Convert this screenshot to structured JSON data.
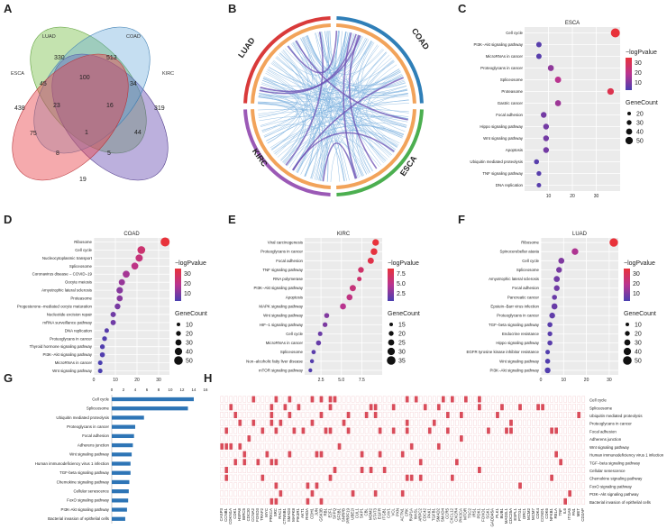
{
  "panels": {
    "A": "A",
    "B": "B",
    "C": "C",
    "D": "D",
    "E": "E",
    "F": "F",
    "G": "G",
    "H": "H"
  },
  "venn": {
    "sets": [
      "LUAD",
      "COAD",
      "ESCA",
      "KIRC"
    ],
    "colors": [
      "#5aa0d8",
      "#7cc24e",
      "#e8434a",
      "#6b4fb3"
    ],
    "regions": [
      "330",
      "513",
      "438",
      "319",
      "45",
      "100",
      "34",
      "75",
      "23",
      "16",
      "44",
      "1",
      "5",
      "8",
      "19"
    ]
  },
  "circos": {
    "labels": [
      "LUAD",
      "COAD",
      "ESCA",
      "KIRC"
    ],
    "colors": [
      "#9b59b6",
      "#d93a3a",
      "#2f7fb8",
      "#4caf50"
    ],
    "link_color": "#7fb3e0"
  },
  "legend": {
    "color_title": "−logPvalue",
    "size_title": "GeneCount"
  },
  "chart_data": [
    {
      "panel": "C",
      "type": "scatter",
      "title": "ESCA",
      "categories": [
        "Cell cycle",
        "PI3K−Akt signaling pathway",
        "MicroRNAs in cancer",
        "Proteoglycans in cancer",
        "Spliceosome",
        "Proteasome",
        "Gastric cancer",
        "Focal adhesion",
        "Hippo signaling pathway",
        "Wnt signaling pathway",
        "Apoptosis",
        "Ubiquitin mediated proteolysis",
        "TNF signaling pathway",
        "DNA replication"
      ],
      "x": [
        38,
        6,
        6,
        11,
        14,
        36,
        14,
        8,
        9,
        9,
        9,
        5,
        6,
        6
      ],
      "logp": [
        38,
        8,
        8,
        16,
        22,
        34,
        18,
        12,
        12,
        12,
        12,
        8,
        8,
        8
      ],
      "gene_count": [
        55,
        25,
        25,
        30,
        32,
        35,
        30,
        28,
        28,
        28,
        28,
        22,
        20,
        18
      ],
      "xticks": [
        "10",
        "20",
        "30"
      ],
      "xlim": [
        0,
        40
      ],
      "color_ticks": [
        "30",
        "20",
        "10"
      ],
      "color_range": [
        6,
        38
      ],
      "size_ticks": [
        "20",
        "30",
        "40",
        "50"
      ]
    },
    {
      "panel": "D",
      "type": "scatter",
      "title": "COAD",
      "categories": [
        "Ribosome",
        "Cell cycle",
        "Nucleocytoplasmic transport",
        "Spliceosome",
        "Coronavirus disease − COVID−19",
        "Oocyte meiosis",
        "Amyotrophic lateral sclerosis",
        "Proteasome",
        "Progesterone−mediated oocyte maturation",
        "Nucleotide excision repair",
        "mRNA surveillance pathway",
        "DNA replication",
        "Proteoglycans in cancer",
        "Thyroid hormone signaling pathway",
        "PI3K−Akt signaling pathway",
        "MicroRNAs in cancer",
        "Wnt signaling pathway"
      ],
      "x": [
        33,
        22,
        21,
        19,
        15,
        13,
        12,
        12,
        11,
        9,
        9,
        6,
        5,
        4,
        4,
        3,
        3
      ],
      "logp": [
        33,
        24,
        22,
        20,
        16,
        14,
        12,
        12,
        10,
        9,
        9,
        6,
        5,
        5,
        5,
        4,
        4
      ],
      "gene_count": [
        55,
        45,
        40,
        38,
        38,
        32,
        34,
        30,
        28,
        25,
        24,
        18,
        20,
        20,
        22,
        18,
        18
      ],
      "xticks": [
        "0",
        "10",
        "20",
        "30"
      ],
      "xlim": [
        0,
        35
      ],
      "color_ticks": [
        "30",
        "20",
        "10"
      ],
      "color_range": [
        4,
        33
      ],
      "size_ticks": [
        "10",
        "20",
        "30",
        "40",
        "50"
      ]
    },
    {
      "panel": "E",
      "type": "scatter",
      "title": "KIRC",
      "categories": [
        "Viral carcinogenesis",
        "Proteoglycans in cancer",
        "Focal adhesion",
        "TNF signaling pathway",
        "RNA polymerase",
        "PI3K−Akt signaling pathway",
        "Apoptosis",
        "MAPK signaling pathway",
        "Wnt signaling pathway",
        "HIF−1 signaling pathway",
        "Cell cycle",
        "MicroRNAs in cancer",
        "Spliceosome",
        "Non−alcoholic fatty liver disease",
        "mTOR signaling pathway"
      ],
      "x": [
        9.2,
        9.0,
        8.6,
        7.4,
        7.2,
        6.4,
        6.0,
        5.2,
        3.2,
        3.0,
        2.4,
        2.2,
        1.6,
        1.4,
        1.2
      ],
      "logp": [
        9.2,
        9.0,
        8.5,
        7.0,
        6.8,
        6.2,
        5.8,
        5.2,
        3.2,
        3.0,
        2.4,
        2.2,
        1.8,
        1.6,
        1.4
      ],
      "gene_count": [
        35,
        36,
        32,
        28,
        18,
        32,
        30,
        30,
        22,
        20,
        18,
        22,
        16,
        14,
        12
      ],
      "xticks": [
        "2.5",
        "5.0",
        "7.5"
      ],
      "xlim": [
        0.5,
        10
      ],
      "color_ticks": [
        "7.5",
        "5.0",
        "2.5"
      ],
      "color_range": [
        1.2,
        9.2
      ],
      "size_ticks": [
        "15",
        "20",
        "25",
        "30",
        "35"
      ]
    },
    {
      "panel": "F",
      "type": "scatter",
      "title": "LUAD",
      "categories": [
        "Ribosome",
        "Spinocerebellar ataxia",
        "Cell cycle",
        "Spliceosome",
        "Amyotrophic lateral sclerosis",
        "Focal adhesion",
        "Pancreatic cancer",
        "Epstein−Barr virus infection",
        "Proteoglycans in cancer",
        "TGF−beta signaling pathway",
        "Endocrine resistance",
        "Hippo signaling pathway",
        "EGFR tyrosine kinase inhibitor resistance",
        "Wnt signaling pathway",
        "PI3K−Akt signaling pathway"
      ],
      "x": [
        32,
        15,
        9,
        8,
        7,
        7,
        6,
        6,
        5,
        4,
        4,
        4,
        3,
        3,
        3
      ],
      "logp": [
        32,
        16,
        10,
        9,
        8,
        8,
        7,
        7,
        6,
        5,
        5,
        5,
        4,
        4,
        4
      ],
      "gene_count": [
        50,
        35,
        30,
        28,
        30,
        28,
        22,
        30,
        28,
        22,
        20,
        22,
        18,
        22,
        28
      ],
      "xticks": [
        "0",
        "10",
        "20",
        "30"
      ],
      "xlim": [
        0,
        34
      ],
      "color_ticks": [
        "30",
        "20",
        "10"
      ],
      "color_range": [
        3,
        32
      ],
      "size_ticks": [
        "10",
        "20",
        "30",
        "40",
        "50"
      ]
    },
    {
      "panel": "G",
      "type": "bar",
      "orientation": "horizontal",
      "categories": [
        "Cell cycle",
        "Spliceosome",
        "Ubiquitin mediated proteolysis",
        "Proteoglycans in cancer",
        "Focal adhesion",
        "Adherens junction",
        "Wnt signaling pathway",
        "Human immunodeficiency virus 1 infection",
        "TGF-beta signaling pathway",
        "Chemokine signaling pathway",
        "Cellular senescence",
        "FoxO signaling pathway",
        "PI3K-Akt signaling pathway",
        "Bacterial invasion of epithelial cells"
      ],
      "values": [
        14,
        13,
        5.5,
        4,
        3.8,
        3.6,
        3.4,
        3.2,
        3.2,
        3.0,
        2.9,
        2.8,
        2.6,
        2.3
      ],
      "xticks": [
        "0",
        "2",
        "4",
        "6",
        "8",
        "10",
        "12",
        "14",
        "16"
      ],
      "xlim": [
        0,
        16
      ],
      "color": "#2e75b6"
    },
    {
      "panel": "H",
      "type": "heatmap",
      "rows": [
        "Cell cycle",
        "Spliceosome",
        "Ubiquitin mediated proteolysis",
        "Proteoglycans in cancer",
        "Focal adhesion",
        "Adherens junction",
        "Wnt signaling pathway",
        "Human immunodeficiency virus 1 infection",
        "TGF−beta signaling pathway",
        "Cellular senescence",
        "Chemokine signaling pathway",
        "FoxO signaling pathway",
        "PI3K−Akt signaling pathway",
        "Bacterial invasion of epithelial cells"
      ],
      "columns": [
        "CASP3",
        "CCNB1",
        "CDKN1A",
        "CDK1",
        "HSPA8",
        "BIRC5",
        "CDC20",
        "CCNA2",
        "FOXO3",
        "TRAF2",
        "MYC",
        "PRKCA",
        "SRC",
        "RAC1",
        "CTNNB1",
        "SMAD3",
        "MAPK8",
        "PIK3R1",
        "AKT1",
        "RHOA",
        "CDH1",
        "JUN",
        "GSK3B",
        "RB1",
        "E2F1",
        "SFPQ",
        "SF3B1",
        "SNRPB",
        "PRPF19",
        "UBE2I",
        "CUL1",
        "SKP1",
        "CBL",
        "MDM2",
        "STAT3",
        "EGFR",
        "ITGB1",
        "CAV1",
        "VCL",
        "PXN",
        "ACTN1",
        "CRK",
        "RAP1A",
        "WASL",
        "ARPC2",
        "CDC42",
        "PAK1",
        "TGFB1",
        "SMAD2",
        "SMAD4",
        "CCR5",
        "CXCL12",
        "CXCR4",
        "PIK3CA",
        "MTOR",
        "TSC2",
        "IRS1",
        "PDK1",
        "FOXO1",
        "SGK1",
        "GADD45A",
        "PLK1",
        "BUB1",
        "MAD2L1",
        "CDC25A",
        "ESPL1",
        "PTTG1",
        "ORC1",
        "MCM2",
        "MCM7",
        "CDK4",
        "CCND1",
        "CDK6",
        "NFKB1",
        "RELA",
        "TNF",
        "IL6",
        "ITGA5",
        "FN1",
        "MET",
        "CD2AP"
      ],
      "highlight_color": "#d94c5a",
      "empty_color": "#f6d5d8"
    }
  ]
}
